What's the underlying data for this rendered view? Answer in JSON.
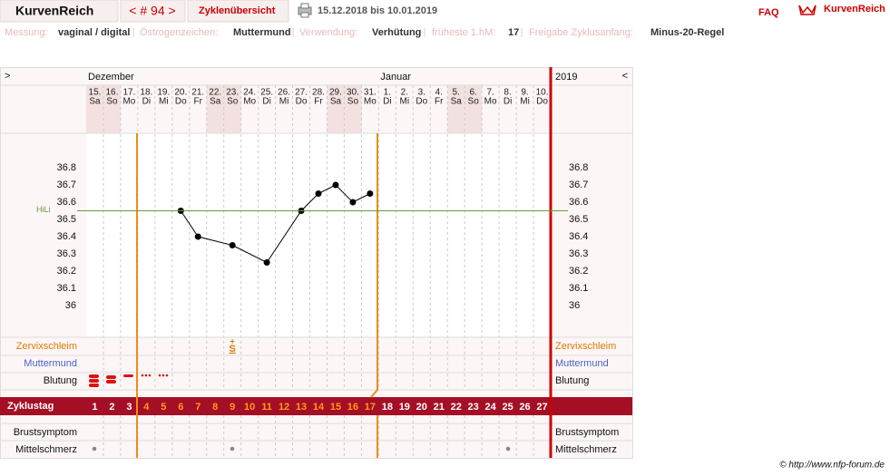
{
  "header": {
    "brand": "KurvenReich",
    "cycle_nav": "< # 94 >",
    "overview": "Zyklenübersicht",
    "date_range": "15.12.2018 bis 10.01.2019",
    "faq": "FAQ",
    "logo": "KurvenReich"
  },
  "info": [
    {
      "label": "Messung:",
      "value": "vaginal / digital"
    },
    {
      "label": "Östrogenzeichen:",
      "value": "Muttermund"
    },
    {
      "label": "Verwendung:",
      "value": "Verhütung"
    },
    {
      "label": "früheste 1.hM:",
      "value": "17"
    },
    {
      "label": "Freigabe Zyklusanfang:",
      "value": "Minus-20-Regel"
    }
  ],
  "chart_data": {
    "type": "line",
    "nav_prev": ">",
    "nav_next": "<",
    "months": [
      "Dezember",
      "Januar"
    ],
    "year": "2019",
    "dates": [
      "15.",
      "16.",
      "17.",
      "18.",
      "19.",
      "20.",
      "21.",
      "22.",
      "23.",
      "24.",
      "25.",
      "26.",
      "27.",
      "28.",
      "29.",
      "30.",
      "31.",
      "1.",
      "2.",
      "3.",
      "4.",
      "5.",
      "6.",
      "7.",
      "8.",
      "9.",
      "10."
    ],
    "weekdays": [
      "Sa",
      "So",
      "Mo",
      "Di",
      "Mi",
      "Do",
      "Fr",
      "Sa",
      "So",
      "Mo",
      "Di",
      "Mi",
      "Do",
      "Fr",
      "Sa",
      "So",
      "Mo",
      "Di",
      "Mi",
      "Do",
      "Fr",
      "Sa",
      "So",
      "Mo",
      "Di",
      "Mi",
      "Do"
    ],
    "cycle_days": [
      1,
      2,
      3,
      4,
      5,
      6,
      7,
      8,
      9,
      10,
      11,
      12,
      13,
      14,
      15,
      16,
      17,
      18,
      19,
      20,
      21,
      22,
      23,
      24,
      25,
      26,
      27
    ],
    "x": [
      6,
      7,
      9,
      11,
      13,
      14,
      15,
      16,
      17
    ],
    "values": [
      36.55,
      36.4,
      36.35,
      36.25,
      36.55,
      36.65,
      36.7,
      36.6,
      36.65
    ],
    "color": "#000000",
    "xlim": [
      0.5,
      27.5
    ],
    "ylim": [
      35.8,
      37.0
    ],
    "yticks": [
      36,
      36.1,
      36.2,
      36.3,
      36.4,
      36.5,
      36.6,
      36.7,
      36.8
    ],
    "hili": {
      "label": "HiLi",
      "value": 36.55,
      "color": "#6a9a3a"
    },
    "rows": {
      "cervix": "Zervixschleim",
      "cervix_mouth": "Muttermund",
      "bleeding": "Blutung",
      "cycle_day": "Zyklustag",
      "breast": "Brustsymptom",
      "mittelschmerz": "Mittelschmerz"
    },
    "cervix_mark": {
      "day": 9,
      "symbol": "S",
      "modifier": "+"
    }
  },
  "footer": "© http://www.nfp-forum.de"
}
